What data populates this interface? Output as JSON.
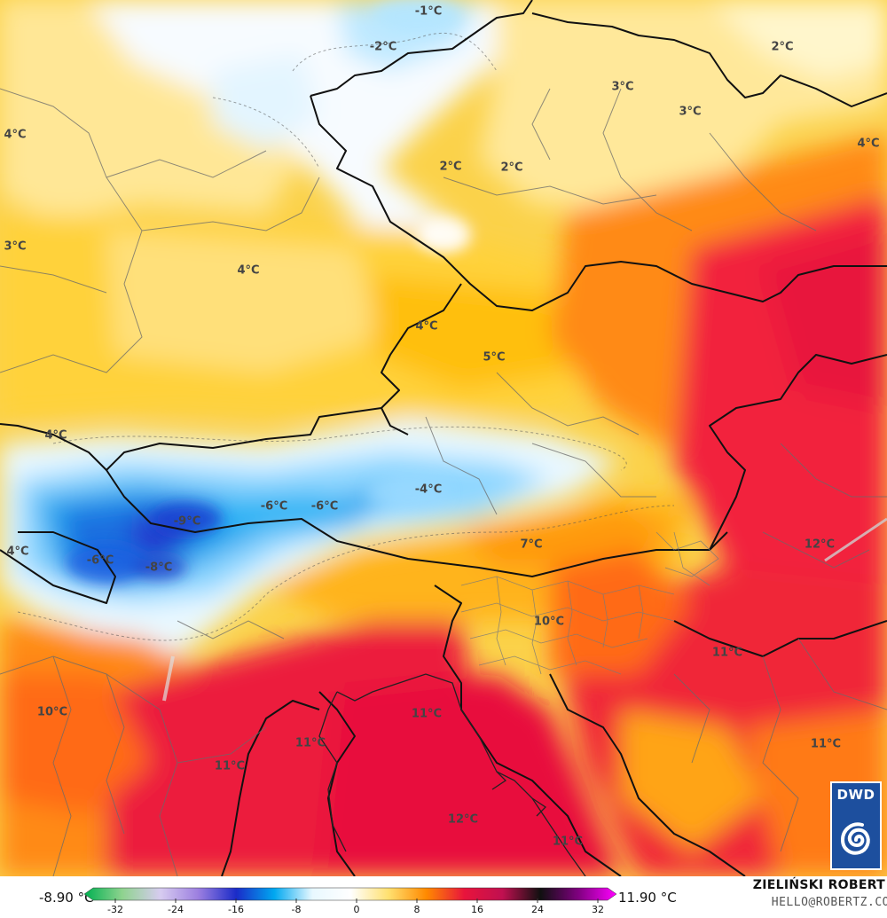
{
  "map": {
    "labels": [
      {
        "text": "-1°C"
      },
      {
        "text": "-2°C"
      },
      {
        "text": "2°C"
      },
      {
        "text": "3°C"
      },
      {
        "text": "3°C"
      },
      {
        "text": "4°C"
      },
      {
        "text": "4°C"
      },
      {
        "text": "2°C"
      },
      {
        "text": "2°C"
      },
      {
        "text": "3°C"
      },
      {
        "text": "4°C"
      },
      {
        "text": "4°C"
      },
      {
        "text": "5°C"
      },
      {
        "text": "4°C"
      },
      {
        "text": "-4°C"
      },
      {
        "text": "-9°C"
      },
      {
        "text": "-6°C"
      },
      {
        "text": "-6°C"
      },
      {
        "text": "4°C"
      },
      {
        "text": "-6°C"
      },
      {
        "text": "-8°C"
      },
      {
        "text": "7°C"
      },
      {
        "text": "12°C"
      },
      {
        "text": "10°C"
      },
      {
        "text": "11°C"
      },
      {
        "text": "10°C"
      },
      {
        "text": "11°C"
      },
      {
        "text": "11°C"
      },
      {
        "text": "11°C"
      },
      {
        "text": "11°C"
      },
      {
        "text": "12°C"
      },
      {
        "text": "11°C"
      }
    ]
  },
  "logo": {
    "text": "DWD",
    "color": "#1d4f9e"
  },
  "legend": {
    "min_value": "-8.90 °C",
    "max_value": "11.90 °C",
    "ticks": [
      "-32",
      "-24",
      "-16",
      "-8",
      "0",
      "8",
      "16",
      "24",
      "32"
    ],
    "gradient_colors": [
      "#00b050",
      "#8fd38f",
      "#d7ccf0",
      "#9c7fe0",
      "#1a2bc8",
      "#00a8f0",
      "#e8f8ff",
      "#ffffff",
      "#ffe070",
      "#ff8a00",
      "#e8143c",
      "#c01050",
      "#101010",
      "#800080",
      "#ff00ff"
    ]
  },
  "credits": {
    "name": "ZIELIŃSKI ROBERT",
    "email": "HELLO@ROBERTZ.CO"
  },
  "palette": {
    "cold_blue": "#1e90e8",
    "light_blue": "#c7ecff",
    "white": "#f4fbff",
    "yellow": "#ffe48a",
    "gold": "#ffc61a",
    "orange": "#ff7a10",
    "red": "#e8173c",
    "border": "#111111"
  }
}
